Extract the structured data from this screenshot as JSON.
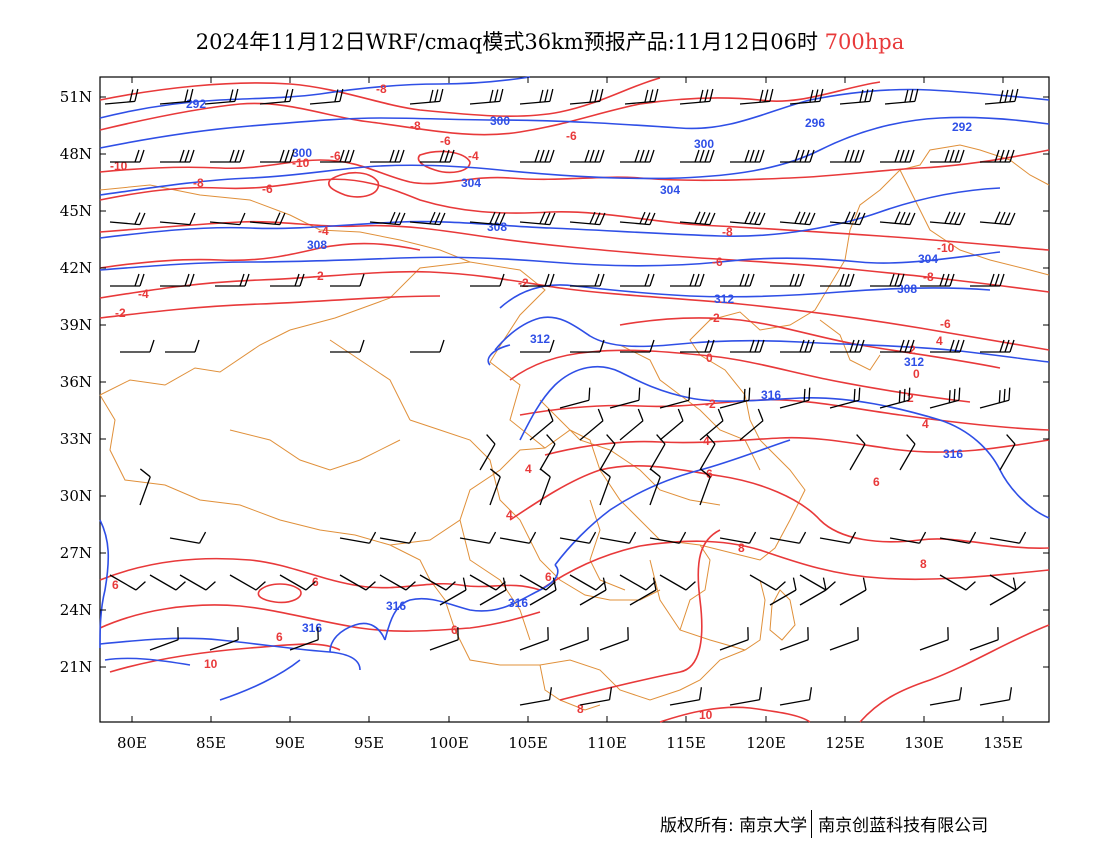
{
  "title": {
    "main": "2024年11月12日WRF/cmaq模式36km预报产品:11月12日06时",
    "level": "700hpa"
  },
  "axes": {
    "x_ticks": [
      "80E",
      "85E",
      "90E",
      "95E",
      "100E",
      "105E",
      "110E",
      "115E",
      "120E",
      "125E",
      "130E",
      "135E"
    ],
    "y_ticks": [
      "51N",
      "48N",
      "45N",
      "42N",
      "39N",
      "36N",
      "33N",
      "30N",
      "27N",
      "24N",
      "21N"
    ]
  },
  "contour_labels": {
    "height": [
      "292",
      "296",
      "300",
      "304",
      "308",
      "312",
      "316"
    ],
    "temperature": [
      "-10",
      "-8",
      "-6",
      "-4",
      "-2",
      "0",
      "2",
      "4",
      "6",
      "8",
      "10"
    ]
  },
  "colors": {
    "height_contour": "#2f4fe6",
    "temperature_contour": "#e8393a",
    "boundary": "#e0903a",
    "wind_barb": "#000000",
    "title_level": "#e8393a"
  },
  "footer": {
    "left": "版权所有: 南京大学",
    "right": "南京创蓝科技有限公司"
  }
}
